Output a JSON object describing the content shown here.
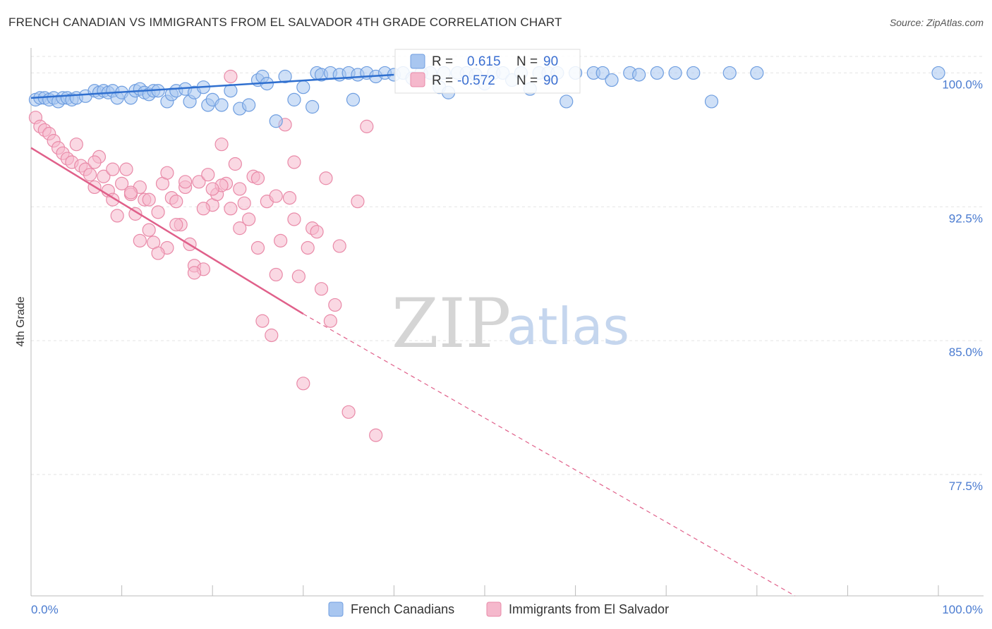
{
  "header": {
    "title": "FRENCH CANADIAN VS IMMIGRANTS FROM EL SALVADOR 4TH GRADE CORRELATION CHART",
    "source": "Source: ZipAtlas.com"
  },
  "watermark": {
    "zip": "ZIP",
    "atlas": "atlas"
  },
  "legend": {
    "rows": [
      {
        "r_label": "R =",
        "r_value": "0.615",
        "n_label": "N =",
        "n_value": "90"
      },
      {
        "r_label": "R =",
        "r_value": "-0.572",
        "n_label": "N =",
        "n_value": "90"
      }
    ]
  },
  "bottom_legend": {
    "series_1": "French Canadians",
    "series_2": "Immigrants from El Salvador"
  },
  "axes": {
    "ylabel": "4th Grade",
    "x_left_label": "0.0%",
    "x_right_label": "100.0%",
    "y_ticks": [
      "100.0%",
      "92.5%",
      "85.0%",
      "77.5%"
    ]
  },
  "colors": {
    "blue_fill": "#a8c6f0",
    "blue_stroke": "#6f9ee0",
    "blue_line": "#2f6fcf",
    "pink_fill": "#f5b8cc",
    "pink_stroke": "#e98aa8",
    "pink_line": "#e0608a",
    "grid": "#e3e3e3",
    "axis_label": "#4a7bd0"
  },
  "chart_data": {
    "type": "scatter",
    "title": "FRENCH CANADIAN VS IMMIGRANTS FROM EL SALVADOR 4TH GRADE CORRELATION CHART",
    "xlabel": "",
    "ylabel": "4th Grade",
    "xlim": [
      0,
      100
    ],
    "ylim": [
      70.7,
      101.4
    ],
    "y_ticks": [
      100.0,
      92.5,
      85.0,
      77.5
    ],
    "grid": true,
    "legend_placement": "top-center",
    "series": [
      {
        "name": "French Canadians",
        "r": 0.615,
        "n": 90,
        "trend": {
          "x": [
            0,
            40
          ],
          "y": [
            98.6,
            99.9
          ]
        },
        "points": [
          [
            0.5,
            98.5
          ],
          [
            1,
            98.6
          ],
          [
            1.5,
            98.6
          ],
          [
            2,
            98.5
          ],
          [
            2.5,
            98.6
          ],
          [
            3,
            98.4
          ],
          [
            3.5,
            98.6
          ],
          [
            4,
            98.6
          ],
          [
            4.5,
            98.5
          ],
          [
            5,
            98.6
          ],
          [
            6,
            98.7
          ],
          [
            7,
            99.0
          ],
          [
            7.5,
            98.9
          ],
          [
            8,
            99.0
          ],
          [
            8.5,
            98.9
          ],
          [
            9,
            99.0
          ],
          [
            9.5,
            98.6
          ],
          [
            10,
            98.9
          ],
          [
            11,
            98.6
          ],
          [
            11.5,
            99.0
          ],
          [
            12,
            99.1
          ],
          [
            12.5,
            98.9
          ],
          [
            13,
            98.8
          ],
          [
            13.5,
            99.0
          ],
          [
            14,
            99.0
          ],
          [
            15,
            98.4
          ],
          [
            15.5,
            98.8
          ],
          [
            16,
            99.0
          ],
          [
            17,
            99.1
          ],
          [
            17.5,
            98.4
          ],
          [
            18,
            98.9
          ],
          [
            19,
            99.2
          ],
          [
            19.5,
            98.2
          ],
          [
            20,
            98.5
          ],
          [
            21,
            98.2
          ],
          [
            22,
            99.0
          ],
          [
            23,
            98.0
          ],
          [
            24,
            98.2
          ],
          [
            25,
            99.6
          ],
          [
            25.5,
            99.8
          ],
          [
            26,
            99.4
          ],
          [
            27,
            97.3
          ],
          [
            28,
            99.8
          ],
          [
            29,
            98.5
          ],
          [
            30,
            99.2
          ],
          [
            31,
            98.1
          ],
          [
            31.5,
            100.0
          ],
          [
            32,
            99.9
          ],
          [
            33,
            100.0
          ],
          [
            34,
            99.9
          ],
          [
            35,
            100.0
          ],
          [
            35.5,
            98.5
          ],
          [
            36,
            99.9
          ],
          [
            37,
            100.0
          ],
          [
            38,
            99.8
          ],
          [
            39,
            100.0
          ],
          [
            40,
            99.9
          ],
          [
            41,
            100.0
          ],
          [
            42,
            99.7
          ],
          [
            43,
            100.0
          ],
          [
            44,
            100.0
          ],
          [
            45,
            99.2
          ],
          [
            45.5,
            100.0
          ],
          [
            46,
            98.9
          ],
          [
            47,
            100.0
          ],
          [
            48,
            100.0
          ],
          [
            49,
            99.9
          ],
          [
            50,
            99.4
          ],
          [
            51,
            100.0
          ],
          [
            52,
            100.0
          ],
          [
            53,
            99.6
          ],
          [
            54,
            100.0
          ],
          [
            55,
            99.1
          ],
          [
            56,
            100.0
          ],
          [
            57,
            100.0
          ],
          [
            58,
            100.0
          ],
          [
            59,
            98.4
          ],
          [
            60,
            100.0
          ],
          [
            62,
            100.0
          ],
          [
            63,
            100.0
          ],
          [
            64,
            99.6
          ],
          [
            66,
            100.0
          ],
          [
            67,
            99.9
          ],
          [
            69,
            100.0
          ],
          [
            71,
            100.0
          ],
          [
            73,
            100.0
          ],
          [
            75,
            98.4
          ],
          [
            77,
            100.0
          ],
          [
            80,
            100.0
          ],
          [
            100,
            100.0
          ]
        ]
      },
      {
        "name": "Immigrants from El Salvador",
        "r": -0.572,
        "n": 90,
        "trend": {
          "x": [
            0,
            30
          ],
          "y": [
            95.8,
            86.5
          ]
        },
        "trend_extension": {
          "x": [
            30,
            84.2
          ],
          "y": [
            86.5,
            70.7
          ]
        },
        "points": [
          [
            0.5,
            97.5
          ],
          [
            1,
            97.0
          ],
          [
            1.5,
            96.8
          ],
          [
            2,
            96.6
          ],
          [
            2.5,
            96.2
          ],
          [
            3,
            95.8
          ],
          [
            3.5,
            95.5
          ],
          [
            4,
            95.2
          ],
          [
            4.5,
            95.0
          ],
          [
            5,
            96.0
          ],
          [
            5.5,
            94.8
          ],
          [
            6,
            94.6
          ],
          [
            6.5,
            94.3
          ],
          [
            7,
            93.6
          ],
          [
            7.5,
            95.3
          ],
          [
            8,
            94.2
          ],
          [
            8.5,
            93.4
          ],
          [
            9,
            92.9
          ],
          [
            9.5,
            92.0
          ],
          [
            10,
            93.8
          ],
          [
            10.5,
            94.6
          ],
          [
            11,
            93.2
          ],
          [
            11.5,
            92.1
          ],
          [
            12,
            93.6
          ],
          [
            12.5,
            92.9
          ],
          [
            13,
            91.2
          ],
          [
            13.5,
            90.5
          ],
          [
            14,
            92.2
          ],
          [
            14.5,
            93.8
          ],
          [
            15,
            90.2
          ],
          [
            15.5,
            93.0
          ],
          [
            16,
            92.8
          ],
          [
            16.5,
            91.5
          ],
          [
            17,
            93.6
          ],
          [
            17.5,
            90.4
          ],
          [
            18,
            89.2
          ],
          [
            18.5,
            93.9
          ],
          [
            19,
            89.0
          ],
          [
            19.5,
            94.3
          ],
          [
            20,
            92.6
          ],
          [
            20.5,
            93.2
          ],
          [
            21,
            96.0
          ],
          [
            21.5,
            93.8
          ],
          [
            22,
            92.4
          ],
          [
            22.5,
            94.9
          ],
          [
            23,
            93.5
          ],
          [
            23.5,
            92.7
          ],
          [
            24,
            91.8
          ],
          [
            24.5,
            94.2
          ],
          [
            25,
            90.2
          ],
          [
            25.5,
            86.1
          ],
          [
            26,
            92.8
          ],
          [
            26.5,
            85.3
          ],
          [
            27,
            88.7
          ],
          [
            27.5,
            90.6
          ],
          [
            28,
            97.1
          ],
          [
            28.5,
            93.0
          ],
          [
            29,
            91.8
          ],
          [
            29.5,
            88.6
          ],
          [
            30,
            82.6
          ],
          [
            30.5,
            90.2
          ],
          [
            31,
            91.3
          ],
          [
            31.5,
            91.1
          ],
          [
            32,
            87.9
          ],
          [
            32.5,
            94.1
          ],
          [
            33,
            86.1
          ],
          [
            33.5,
            87.0
          ],
          [
            34,
            90.3
          ],
          [
            35,
            81.0
          ],
          [
            36,
            92.8
          ],
          [
            37,
            97.0
          ],
          [
            38,
            79.7
          ],
          [
            7,
            95.0
          ],
          [
            9,
            94.6
          ],
          [
            11,
            93.3
          ],
          [
            13,
            92.9
          ],
          [
            15,
            94.4
          ],
          [
            17,
            93.9
          ],
          [
            19,
            92.4
          ],
          [
            21,
            93.7
          ],
          [
            23,
            91.3
          ],
          [
            25,
            94.1
          ],
          [
            27,
            93.1
          ],
          [
            29,
            95.0
          ],
          [
            12,
            90.6
          ],
          [
            14,
            89.9
          ],
          [
            16,
            91.5
          ],
          [
            18,
            88.8
          ],
          [
            20,
            93.5
          ],
          [
            22,
            99.8
          ]
        ]
      }
    ]
  }
}
